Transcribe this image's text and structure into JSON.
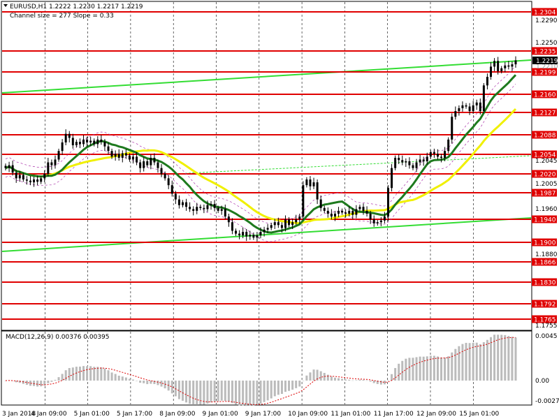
{
  "header": {
    "title": "EURUSD,H1  1.2222 1.2230 1.2217 1.2219",
    "channel": "Channel size = 277 Slope = 0.33"
  },
  "price_axis": {
    "ticks": [
      "1.2290",
      "1.2250",
      "1.2045",
      "1.2005",
      "1.1960",
      "1.1880",
      "1.1755"
    ],
    "current": "1.2219",
    "current_back": "1.2210"
  },
  "levels": [
    "1.2304",
    "1.2235",
    "1.2199",
    "1.2160",
    "1.2127",
    "1.2088",
    "1.2054",
    "1.2020",
    "1.1987",
    "1.1940",
    "1.1900",
    "1.1866",
    "1.1830",
    "1.1792",
    "1.1765"
  ],
  "macd": {
    "label": "MACD(12,26,9) 0.00376 0.00395",
    "ticks": [
      "0.0045",
      "0.00",
      "-0.0027"
    ]
  },
  "time_axis": {
    "labels": [
      "3 Jan 2018",
      "4 Jan 09:00",
      "5 Jan 01:00",
      "5 Jan 17:00",
      "8 Jan 09:00",
      "9 Jan 01:00",
      "9 Jan 17:00",
      "10 Jan 09:00",
      "11 Jan 01:00",
      "11 Jan 17:00",
      "12 Jan 09:00",
      "15 Jan 01:00"
    ]
  },
  "colors": {
    "level": "#e00000",
    "label_bg": "#e00000",
    "channel": "#33dd33",
    "ma_fast": "#1e7a1e",
    "ma_slow": "#f0f000",
    "bands": "#aa33aa",
    "candle": "#000000",
    "histogram": "#bbbbbb",
    "signal": "#dd0000",
    "grid": "#000000"
  },
  "chart_data": {
    "type": "candlestick",
    "symbol": "EURUSD",
    "timeframe": "H1",
    "ohlc_last": {
      "open": 1.2222,
      "high": 1.223,
      "low": 1.2217,
      "close": 1.2219
    },
    "ylim": [
      1.175,
      1.2315
    ],
    "horizontal_levels": [
      1.2304,
      1.2235,
      1.2199,
      1.216,
      1.2127,
      1.2088,
      1.2054,
      1.202,
      1.1987,
      1.194,
      1.19,
      1.1866,
      1.183,
      1.1792,
      1.1765
    ],
    "closes": [
      1.203,
      1.2035,
      1.2022,
      1.2012,
      1.2018,
      1.201,
      1.2008,
      1.2005,
      1.201,
      1.2006,
      1.2012,
      1.202,
      1.204,
      1.2035,
      1.2045,
      1.206,
      1.2075,
      1.209,
      1.2083,
      1.207,
      1.2076,
      1.2072,
      1.208,
      1.2075,
      1.2078,
      1.2072,
      1.208,
      1.2076,
      1.2068,
      1.206,
      1.205,
      1.2055,
      1.2048,
      1.2056,
      1.2052,
      1.2045,
      1.205,
      1.204,
      1.203,
      1.2042,
      1.2035,
      1.2048,
      1.204,
      1.203,
      1.202,
      1.2012,
      1.2,
      1.1985,
      1.1975,
      1.1965,
      1.197,
      1.1962,
      1.1958,
      1.1955,
      1.1962,
      1.196,
      1.1958,
      1.1965,
      1.1967,
      1.196,
      1.1955,
      1.1958,
      1.1945,
      1.1935,
      1.192,
      1.1915,
      1.1912,
      1.1918,
      1.191,
      1.1913,
      1.1908,
      1.1912,
      1.1918,
      1.1922,
      1.1925,
      1.193,
      1.1935,
      1.193,
      1.1925,
      1.194,
      1.193,
      1.1935,
      1.194,
      1.1945,
      1.2,
      1.201,
      1.1998,
      1.2005,
      1.1975,
      1.196,
      1.1955,
      1.195,
      1.1945,
      1.195,
      1.1955,
      1.1952,
      1.195,
      1.1955,
      1.1948,
      1.1958,
      1.1962,
      1.1955,
      1.195,
      1.194,
      1.1933,
      1.1935,
      1.1938,
      1.1945,
      1.1995,
      1.203,
      1.2048,
      1.2044,
      1.204,
      1.2042,
      1.2035,
      1.203,
      1.204,
      1.2045,
      1.2042,
      1.205,
      1.2058,
      1.2055,
      1.205,
      1.2048,
      1.206,
      1.208,
      1.212,
      1.213,
      1.2135,
      1.214,
      1.2138,
      1.213,
      1.214,
      1.2145,
      1.213,
      1.2175,
      1.219,
      1.2208,
      1.2218,
      1.22,
      1.2205,
      1.221,
      1.2208,
      1.2212,
      1.2219
    ],
    "macd_histogram_start": 0.0008,
    "macd_histogram_peak": 0.0041,
    "macd_value": 0.00376,
    "macd_signal": 0.00395,
    "macd_ylim": [
      -0.0027,
      0.0045
    ]
  }
}
